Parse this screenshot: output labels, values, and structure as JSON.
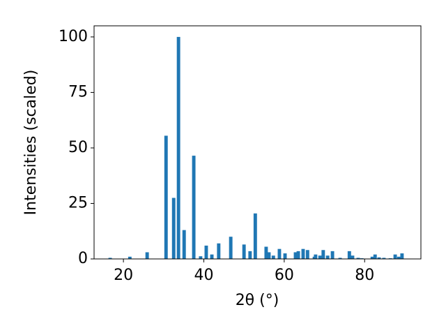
{
  "chart_data": {
    "type": "bar",
    "x_label": "2θ (°)",
    "y_label": "Intensities (scaled)",
    "x": [
      16.7,
      21.6,
      25.9,
      30.6,
      32.5,
      33.7,
      35.1,
      37.5,
      39.2,
      40.6,
      42.0,
      43.7,
      46.7,
      50.0,
      51.5,
      52.8,
      55.5,
      56.2,
      57.3,
      58.8,
      60.2,
      62.8,
      63.5,
      64.7,
      65.8,
      67.5,
      67.8,
      68.9,
      69.7,
      70.8,
      72.0,
      73.9,
      76.2,
      77.0,
      78.4,
      79.3,
      81.9,
      82.6,
      83.6,
      84.8,
      86.4,
      87.6,
      88.5,
      89.3
    ],
    "values": [
      0.5,
      1,
      3,
      55.5,
      27.5,
      100,
      13,
      46.5,
      1.2,
      6,
      2,
      7,
      10,
      6.5,
      3.5,
      20.5,
      5.5,
      3,
      1.5,
      4.5,
      2.5,
      3,
      3.5,
      4.5,
      4,
      1,
      2,
      1.5,
      4,
      1.5,
      3.5,
      0.5,
      3.5,
      1.5,
      0.5,
      0.3,
      1,
      2,
      0.7,
      0.5,
      0.3,
      2,
      1,
      2.5
    ],
    "color": "#1f77b4",
    "xlim": [
      12.7,
      94.0
    ],
    "ylim": [
      0,
      105
    ],
    "xticks": [
      20,
      40,
      60,
      80
    ],
    "yticks": [
      0,
      25,
      50,
      75,
      100
    ],
    "grid": false
  }
}
